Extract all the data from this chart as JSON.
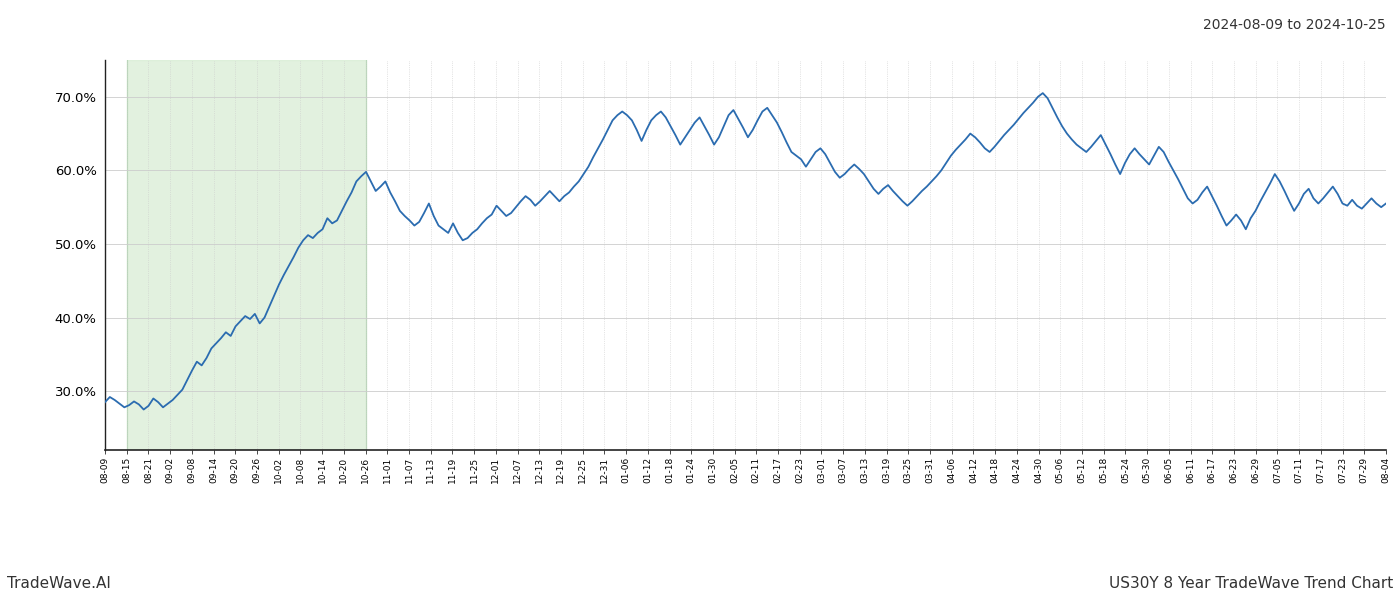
{
  "title_top_right": "2024-08-09 to 2024-10-25",
  "bottom_left": "TradeWave.AI",
  "bottom_right": "US30Y 8 Year TradeWave Trend Chart",
  "bg_color": "#ffffff",
  "line_color": "#2b6cb0",
  "highlight_color": "#d6ecd2",
  "highlight_alpha": 0.7,
  "ylim": [
    22,
    75
  ],
  "yticks": [
    30.0,
    40.0,
    50.0,
    60.0,
    70.0
  ],
  "x_labels": [
    "08-09",
    "08-15",
    "08-21",
    "09-02",
    "09-08",
    "09-14",
    "09-20",
    "09-26",
    "10-02",
    "10-08",
    "10-14",
    "10-20",
    "10-26",
    "11-01",
    "11-07",
    "11-13",
    "11-19",
    "11-25",
    "12-01",
    "12-07",
    "12-13",
    "12-19",
    "12-25",
    "12-31",
    "01-06",
    "01-12",
    "01-18",
    "01-24",
    "01-30",
    "02-05",
    "02-11",
    "02-17",
    "02-23",
    "03-01",
    "03-07",
    "03-13",
    "03-19",
    "03-25",
    "03-31",
    "04-06",
    "04-12",
    "04-18",
    "04-24",
    "04-30",
    "05-06",
    "05-12",
    "05-18",
    "05-24",
    "05-30",
    "06-05",
    "06-11",
    "06-17",
    "06-23",
    "06-29",
    "07-05",
    "07-11",
    "07-17",
    "07-23",
    "07-29",
    "08-04"
  ],
  "highlight_x_start": "08-15",
  "highlight_x_end": "10-26",
  "y_values": [
    28.5,
    29.2,
    28.8,
    28.3,
    27.8,
    28.1,
    28.6,
    28.2,
    27.5,
    28.0,
    29.0,
    28.5,
    27.8,
    28.3,
    28.8,
    29.5,
    30.2,
    31.5,
    32.8,
    34.0,
    33.5,
    34.5,
    35.8,
    36.5,
    37.2,
    38.0,
    37.5,
    38.8,
    39.5,
    40.2,
    39.8,
    40.5,
    39.2,
    40.0,
    41.5,
    43.0,
    44.5,
    45.8,
    47.0,
    48.2,
    49.5,
    50.5,
    51.2,
    50.8,
    51.5,
    52.0,
    53.5,
    52.8,
    53.2,
    54.5,
    55.8,
    57.0,
    58.5,
    59.2,
    59.8,
    58.5,
    57.2,
    57.8,
    58.5,
    57.0,
    55.8,
    54.5,
    53.8,
    53.2,
    52.5,
    53.0,
    54.2,
    55.5,
    53.8,
    52.5,
    52.0,
    51.5,
    52.8,
    51.5,
    50.5,
    50.8,
    51.5,
    52.0,
    52.8,
    53.5,
    54.0,
    55.2,
    54.5,
    53.8,
    54.2,
    55.0,
    55.8,
    56.5,
    56.0,
    55.2,
    55.8,
    56.5,
    57.2,
    56.5,
    55.8,
    56.5,
    57.0,
    57.8,
    58.5,
    59.5,
    60.5,
    61.8,
    63.0,
    64.2,
    65.5,
    66.8,
    67.5,
    68.0,
    67.5,
    66.8,
    65.5,
    64.0,
    65.5,
    66.8,
    67.5,
    68.0,
    67.2,
    66.0,
    64.8,
    63.5,
    64.5,
    65.5,
    66.5,
    67.2,
    66.0,
    64.8,
    63.5,
    64.5,
    66.0,
    67.5,
    68.2,
    67.0,
    65.8,
    64.5,
    65.5,
    66.8,
    68.0,
    68.5,
    67.5,
    66.5,
    65.2,
    63.8,
    62.5,
    62.0,
    61.5,
    60.5,
    61.5,
    62.5,
    63.0,
    62.2,
    61.0,
    59.8,
    59.0,
    59.5,
    60.2,
    60.8,
    60.2,
    59.5,
    58.5,
    57.5,
    56.8,
    57.5,
    58.0,
    57.2,
    56.5,
    55.8,
    55.2,
    55.8,
    56.5,
    57.2,
    57.8,
    58.5,
    59.2,
    60.0,
    61.0,
    62.0,
    62.8,
    63.5,
    64.2,
    65.0,
    64.5,
    63.8,
    63.0,
    62.5,
    63.2,
    64.0,
    64.8,
    65.5,
    66.2,
    67.0,
    67.8,
    68.5,
    69.2,
    70.0,
    70.5,
    69.8,
    68.5,
    67.2,
    66.0,
    65.0,
    64.2,
    63.5,
    63.0,
    62.5,
    63.2,
    64.0,
    64.8,
    63.5,
    62.2,
    60.8,
    59.5,
    61.0,
    62.2,
    63.0,
    62.2,
    61.5,
    60.8,
    62.0,
    63.2,
    62.5,
    61.2,
    60.0,
    58.8,
    57.5,
    56.2,
    55.5,
    56.0,
    57.0,
    57.8,
    56.5,
    55.2,
    53.8,
    52.5,
    53.2,
    54.0,
    53.2,
    52.0,
    53.5,
    54.5,
    55.8,
    57.0,
    58.2,
    59.5,
    58.5,
    57.2,
    55.8,
    54.5,
    55.5,
    56.8,
    57.5,
    56.2,
    55.5,
    56.2,
    57.0,
    57.8,
    56.8,
    55.5,
    55.2,
    56.0,
    55.2,
    54.8,
    55.5,
    56.2,
    55.5,
    55.0,
    55.5
  ]
}
